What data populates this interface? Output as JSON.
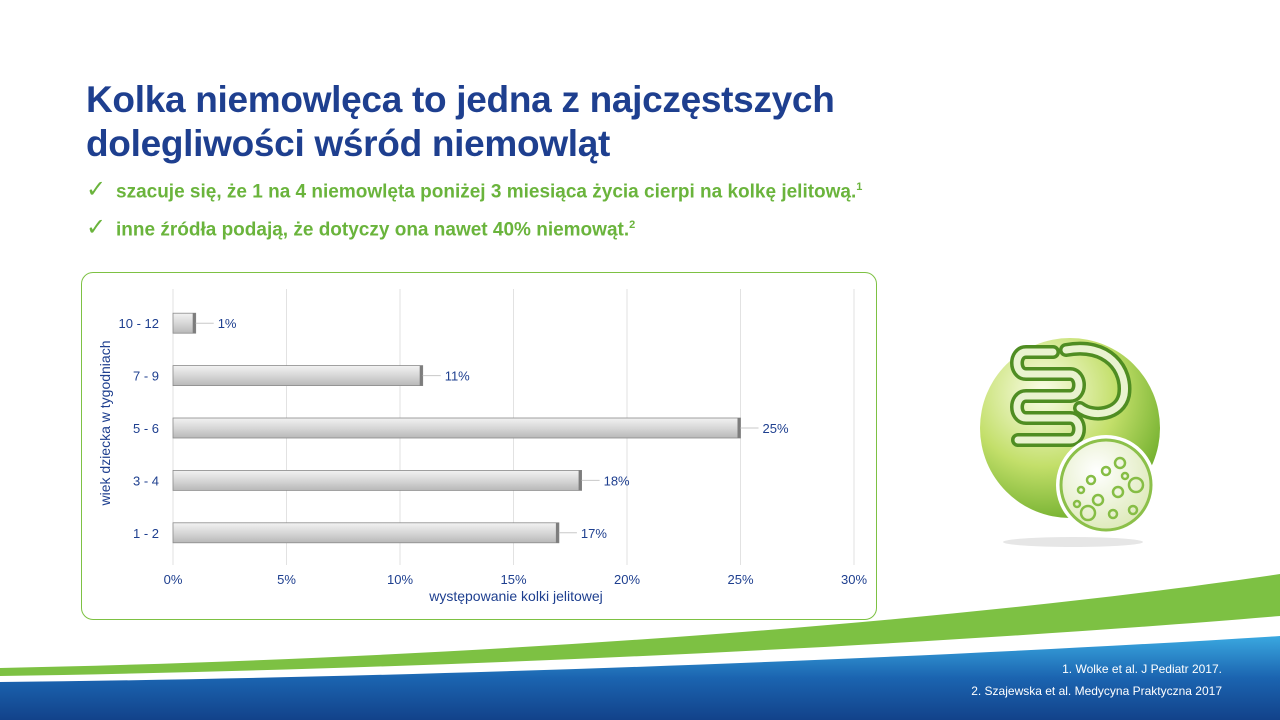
{
  "title_line1": "Kolka niemowlęca to jedna z najczęstszych",
  "title_line2": "dolegliwości wśród niemowląt",
  "bullets": [
    {
      "text": "szacuje się, że 1 na 4 niemowlęta poniżej 3 miesiąca życia cierpi na kolkę jelitową.",
      "sup": "1"
    },
    {
      "text": "inne źródła podają, że dotyczy ona nawet 40% niemowąt.",
      "sup": "2"
    }
  ],
  "check_icon": "checkmark-icon",
  "colors": {
    "title": "#1e3f8f",
    "accent_green": "#6ab43c",
    "bar": "#cfcfcf",
    "footer_blue": "#1b64b0"
  },
  "chart_data": {
    "type": "bar",
    "orientation": "horizontal",
    "categories": [
      "10 - 12",
      "7 - 9",
      "5 - 6",
      "3 - 4",
      "1 - 2"
    ],
    "values": [
      1,
      11,
      25,
      18,
      17
    ],
    "data_labels": [
      "1%",
      "11%",
      "25%",
      "18%",
      "17%"
    ],
    "xlabel": "występowanie kolki jelitowej",
    "ylabel": "wiek dziecka w tygodniach",
    "xlim": [
      0,
      30
    ],
    "xticks": [
      "0%",
      "5%",
      "10%",
      "15%",
      "20%",
      "25%",
      "30%"
    ],
    "grid": "vertical",
    "legend": "none"
  },
  "illustration_icon": "intestine-bacteria-icon",
  "references": [
    "1. Wolke et al. J Pediatr 2017.",
    "2. Szajewska et al. Medycyna Praktyczna 2017"
  ]
}
